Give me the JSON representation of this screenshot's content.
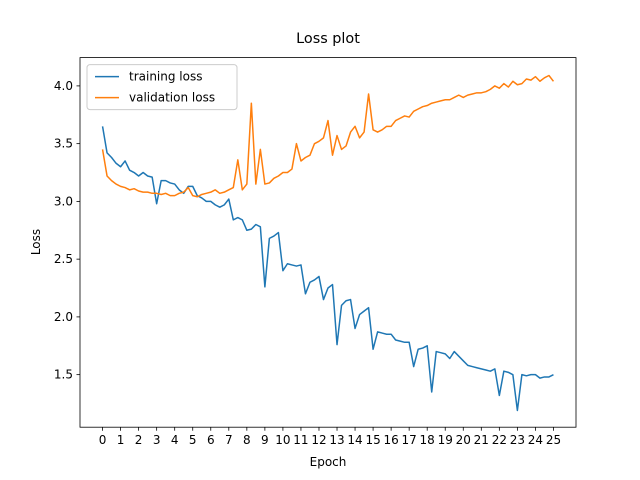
{
  "chart_data": {
    "type": "line",
    "title": "Loss plot",
    "xlabel": "Epoch",
    "ylabel": "Loss",
    "x": [
      0,
      0.25,
      0.5,
      0.75,
      1,
      1.25,
      1.5,
      1.75,
      2,
      2.25,
      2.5,
      2.75,
      3,
      3.25,
      3.5,
      3.75,
      4,
      4.25,
      4.5,
      4.75,
      5,
      5.25,
      5.5,
      5.75,
      6,
      6.25,
      6.5,
      6.75,
      7,
      7.25,
      7.5,
      7.75,
      8,
      8.25,
      8.5,
      8.75,
      9,
      9.25,
      9.5,
      9.75,
      10,
      10.25,
      10.5,
      10.75,
      11,
      11.25,
      11.5,
      11.75,
      12,
      12.25,
      12.5,
      12.75,
      13,
      13.25,
      13.5,
      13.75,
      14,
      14.25,
      14.5,
      14.75,
      15,
      15.25,
      15.5,
      15.75,
      16,
      16.25,
      16.5,
      16.75,
      17,
      17.25,
      17.5,
      17.75,
      18,
      18.25,
      18.5,
      18.75,
      19,
      19.25,
      19.5,
      19.75,
      20,
      20.25,
      20.5,
      20.75,
      21,
      21.25,
      21.5,
      21.75,
      22,
      22.25,
      22.5,
      22.75,
      23,
      23.25,
      23.5,
      23.75,
      24,
      24.25,
      24.5,
      24.75,
      25
    ],
    "series": [
      {
        "name": "training loss",
        "color": "#1f77b4",
        "values": [
          3.65,
          3.42,
          3.38,
          3.33,
          3.3,
          3.35,
          3.27,
          3.25,
          3.22,
          3.25,
          3.22,
          3.21,
          2.98,
          3.18,
          3.18,
          3.16,
          3.15,
          3.1,
          3.07,
          3.13,
          3.13,
          3.05,
          3.03,
          3.0,
          3.0,
          2.97,
          2.95,
          2.97,
          3.02,
          2.84,
          2.86,
          2.84,
          2.75,
          2.76,
          2.8,
          2.78,
          2.26,
          2.68,
          2.7,
          2.73,
          2.4,
          2.46,
          2.45,
          2.44,
          2.45,
          2.2,
          2.3,
          2.32,
          2.35,
          2.15,
          2.25,
          2.28,
          1.76,
          2.1,
          2.14,
          2.15,
          1.9,
          2.02,
          2.05,
          2.08,
          1.72,
          1.87,
          1.86,
          1.85,
          1.85,
          1.8,
          1.79,
          1.78,
          1.78,
          1.57,
          1.72,
          1.73,
          1.75,
          1.35,
          1.7,
          1.69,
          1.68,
          1.64,
          1.7,
          1.66,
          1.62,
          1.58,
          1.57,
          1.56,
          1.55,
          1.54,
          1.53,
          1.55,
          1.32,
          1.53,
          1.52,
          1.5,
          1.19,
          1.5,
          1.49,
          1.5,
          1.5,
          1.47,
          1.48,
          1.48,
          1.5
        ]
      },
      {
        "name": "validation loss",
        "color": "#ff7f0e",
        "values": [
          3.45,
          3.22,
          3.18,
          3.15,
          3.13,
          3.12,
          3.1,
          3.11,
          3.09,
          3.08,
          3.08,
          3.07,
          3.07,
          3.06,
          3.07,
          3.05,
          3.05,
          3.07,
          3.08,
          3.12,
          3.05,
          3.04,
          3.06,
          3.07,
          3.08,
          3.1,
          3.07,
          3.08,
          3.1,
          3.12,
          3.36,
          3.1,
          3.15,
          3.85,
          3.15,
          3.45,
          3.15,
          3.16,
          3.2,
          3.22,
          3.25,
          3.25,
          3.28,
          3.5,
          3.35,
          3.38,
          3.4,
          3.5,
          3.52,
          3.55,
          3.7,
          3.4,
          3.57,
          3.45,
          3.48,
          3.6,
          3.65,
          3.55,
          3.6,
          3.93,
          3.62,
          3.6,
          3.62,
          3.65,
          3.65,
          3.7,
          3.72,
          3.74,
          3.73,
          3.78,
          3.8,
          3.82,
          3.83,
          3.85,
          3.86,
          3.87,
          3.88,
          3.88,
          3.9,
          3.92,
          3.9,
          3.92,
          3.93,
          3.94,
          3.94,
          3.95,
          3.97,
          4.0,
          3.98,
          4.02,
          3.99,
          4.04,
          4.01,
          4.02,
          4.06,
          4.05,
          4.08,
          4.04,
          4.07,
          4.09,
          4.04
        ]
      }
    ],
    "xlim": [
      -1.25,
      26.25
    ],
    "xticks": [
      0,
      1,
      2,
      3,
      4,
      5,
      6,
      7,
      8,
      9,
      10,
      11,
      12,
      13,
      14,
      15,
      16,
      17,
      18,
      19,
      20,
      21,
      22,
      23,
      24,
      25
    ],
    "ylim": [
      1.045,
      4.245
    ],
    "yticks": [
      1.5,
      {
        "value": 2,
        "label": "2.0"
      },
      2.5,
      {
        "value": 3,
        "label": "3.0"
      },
      3.5,
      {
        "value": 4,
        "label": "4.0"
      }
    ],
    "legend": "upper left"
  }
}
